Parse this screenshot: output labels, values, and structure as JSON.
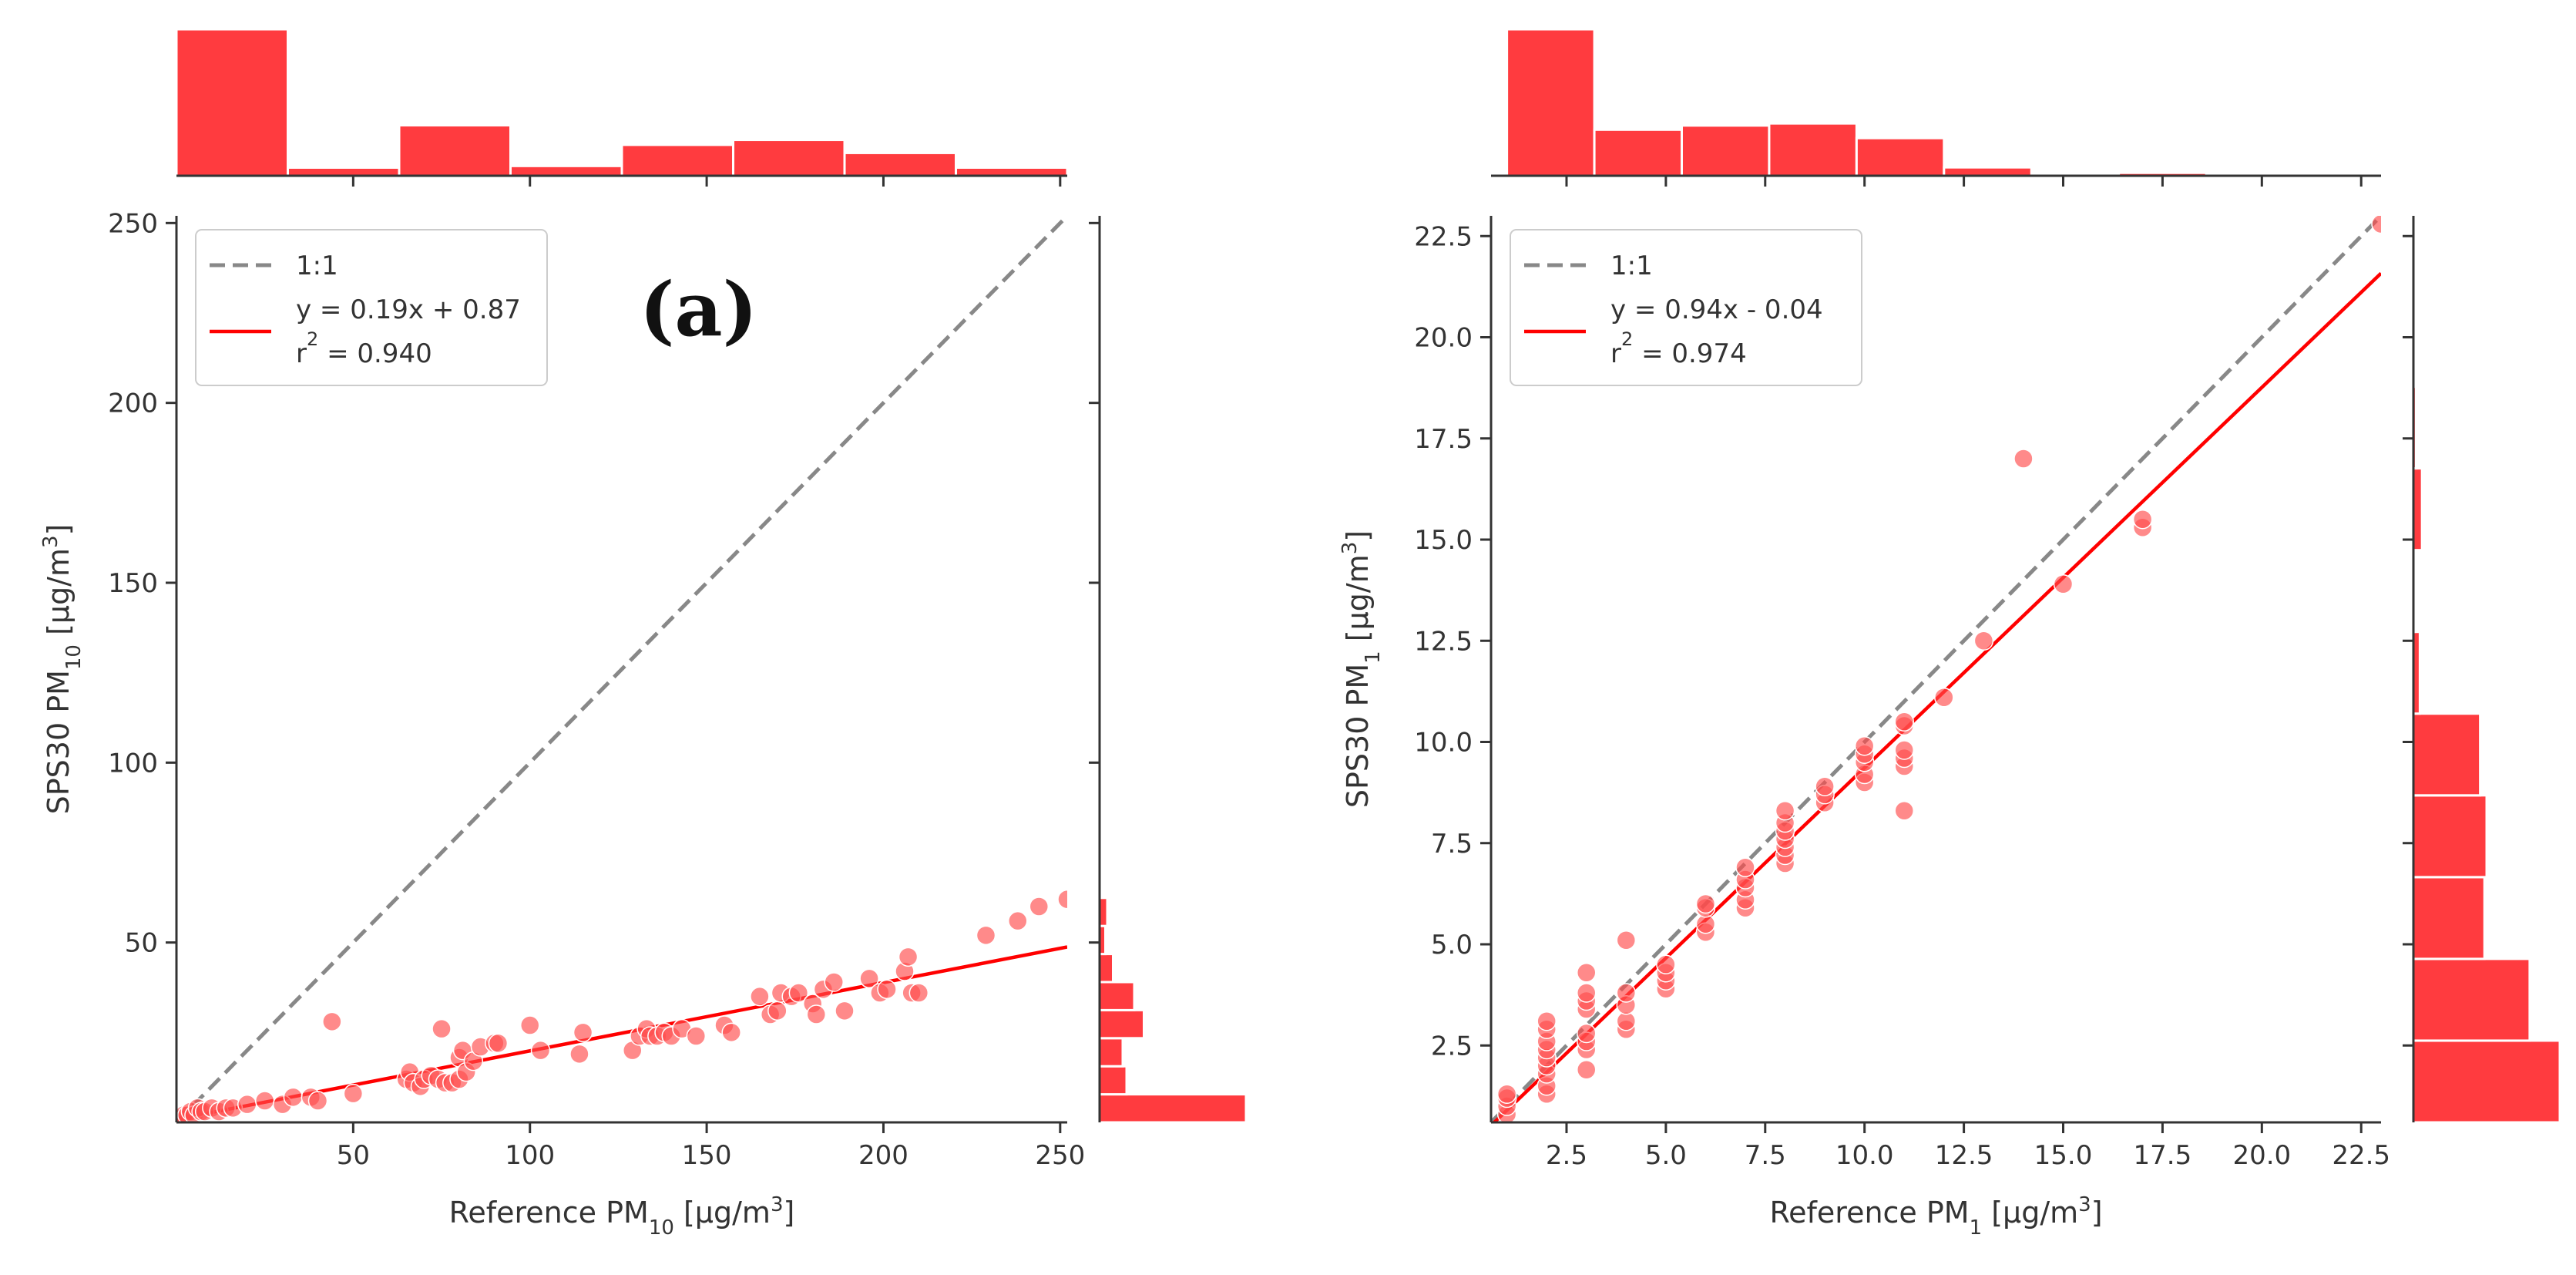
{
  "colors": {
    "points": "#ff4b4b",
    "fit_line": "#ff0000",
    "identity_line": "#888888",
    "histogram": "#ff3b3f",
    "axis": "#333333"
  },
  "chart_data": [
    {
      "type": "scatter",
      "panel_tag": "(a)",
      "xlabel": {
        "prefix": "Reference PM",
        "sub": "10",
        "suffix": " [µg/m",
        "sup": "3",
        "end": "]"
      },
      "ylabel": {
        "prefix": "SPS30 PM",
        "sub": "10",
        "suffix": " [µg/m",
        "sup": "3",
        "end": "]"
      },
      "xlim": [
        0,
        252
      ],
      "ylim": [
        0,
        252
      ],
      "xticks": [
        50,
        100,
        150,
        200,
        250
      ],
      "yticks": [
        50,
        100,
        150,
        200,
        250
      ],
      "tick_labels_x": [
        "50",
        "100",
        "150",
        "200",
        "250"
      ],
      "tick_labels_y": [
        "50",
        "100",
        "150",
        "200",
        "250"
      ],
      "legend": {
        "placement": "top-left",
        "identity_label": "1:1",
        "fit_label_line1": "y = 0.19x + 0.87",
        "fit_label_r": "r",
        "fit_label_sup": "2",
        "fit_label_rest": " = 0.940"
      },
      "fit": {
        "slope": 0.19,
        "intercept": 0.87
      },
      "points": [
        [
          1,
          1
        ],
        [
          2,
          2
        ],
        [
          3,
          2
        ],
        [
          4,
          3
        ],
        [
          5,
          2
        ],
        [
          6,
          4
        ],
        [
          7,
          3
        ],
        [
          8,
          3
        ],
        [
          10,
          4
        ],
        [
          12,
          3
        ],
        [
          14,
          4
        ],
        [
          16,
          4
        ],
        [
          20,
          5
        ],
        [
          25,
          6
        ],
        [
          30,
          5
        ],
        [
          33,
          7
        ],
        [
          38,
          7
        ],
        [
          40,
          6
        ],
        [
          44,
          28
        ],
        [
          50,
          8
        ],
        [
          65,
          12
        ],
        [
          66,
          14
        ],
        [
          67,
          11
        ],
        [
          69,
          10
        ],
        [
          70,
          12
        ],
        [
          72,
          13
        ],
        [
          74,
          12
        ],
        [
          75,
          26
        ],
        [
          76,
          11
        ],
        [
          78,
          11
        ],
        [
          80,
          18
        ],
        [
          80,
          12
        ],
        [
          81,
          20
        ],
        [
          82,
          14
        ],
        [
          84,
          17
        ],
        [
          86,
          21
        ],
        [
          90,
          22
        ],
        [
          91,
          22
        ],
        [
          100,
          27
        ],
        [
          103,
          20
        ],
        [
          114,
          19
        ],
        [
          115,
          25
        ],
        [
          129,
          20
        ],
        [
          131,
          24
        ],
        [
          133,
          26
        ],
        [
          134,
          24
        ],
        [
          136,
          24
        ],
        [
          138,
          25
        ],
        [
          140,
          24
        ],
        [
          143,
          26
        ],
        [
          147,
          24
        ],
        [
          155,
          27
        ],
        [
          157,
          25
        ],
        [
          165,
          35
        ],
        [
          168,
          30
        ],
        [
          170,
          31
        ],
        [
          171,
          36
        ],
        [
          174,
          35
        ],
        [
          176,
          36
        ],
        [
          180,
          33
        ],
        [
          181,
          30
        ],
        [
          183,
          37
        ],
        [
          186,
          39
        ],
        [
          189,
          31
        ],
        [
          196,
          40
        ],
        [
          199,
          36
        ],
        [
          201,
          37
        ],
        [
          206,
          42
        ],
        [
          207,
          46
        ],
        [
          208,
          36
        ],
        [
          210,
          36
        ],
        [
          229,
          52
        ],
        [
          238,
          56
        ],
        [
          244,
          60
        ],
        [
          252,
          62
        ]
      ],
      "hist_top": {
        "bin_edges": [
          0,
          31.5,
          63,
          94.5,
          126,
          157.5,
          189,
          220.5,
          252
        ],
        "counts": [
          90,
          5,
          31,
          6,
          19,
          22,
          14,
          5
        ]
      },
      "hist_right": {
        "bin_edges": [
          0,
          7.8,
          15.6,
          23.4,
          31.2,
          39,
          46.8,
          54.6,
          62.4
        ],
        "counts": [
          76,
          14,
          12,
          23,
          18,
          7,
          3,
          4
        ]
      }
    },
    {
      "type": "scatter",
      "panel_tag": "",
      "xlabel": {
        "prefix": "Reference PM",
        "sub": "1",
        "suffix": " [µg/m",
        "sup": "3",
        "end": "]"
      },
      "ylabel": {
        "prefix": "SPS30 PM",
        "sub": "1",
        "suffix": " [µg/m",
        "sup": "3",
        "end": "]"
      },
      "xlim": [
        0.6,
        23
      ],
      "ylim": [
        0.6,
        23
      ],
      "xticks": [
        2.5,
        5,
        7.5,
        10,
        12.5,
        15,
        17.5,
        20,
        22.5
      ],
      "yticks": [
        2.5,
        5,
        7.5,
        10,
        12.5,
        15,
        17.5,
        20,
        22.5
      ],
      "tick_labels_x": [
        "2.5",
        "5.0",
        "7.5",
        "10.0",
        "12.5",
        "15.0",
        "17.5",
        "20.0",
        "22.5"
      ],
      "tick_labels_y": [
        "2.5",
        "5.0",
        "7.5",
        "10.0",
        "12.5",
        "15.0",
        "17.5",
        "20.0",
        "22.5"
      ],
      "legend": {
        "placement": "top-left",
        "identity_label": "1:1",
        "fit_label_line1": "y = 0.94x - 0.04",
        "fit_label_r": "r",
        "fit_label_sup": "2",
        "fit_label_rest": " = 0.974"
      },
      "fit": {
        "slope": 0.94,
        "intercept": -0.04
      },
      "points": [
        [
          1,
          0.8
        ],
        [
          1,
          1.0
        ],
        [
          1,
          1.2
        ],
        [
          1,
          1.3
        ],
        [
          2,
          1.3
        ],
        [
          2,
          1.5
        ],
        [
          2,
          1.8
        ],
        [
          2,
          2.0
        ],
        [
          2,
          2.2
        ],
        [
          2,
          2.4
        ],
        [
          2,
          2.6
        ],
        [
          2,
          2.9
        ],
        [
          2,
          3.1
        ],
        [
          3,
          1.9
        ],
        [
          3,
          2.4
        ],
        [
          3,
          2.6
        ],
        [
          3,
          2.8
        ],
        [
          3,
          3.4
        ],
        [
          3,
          3.6
        ],
        [
          3,
          3.8
        ],
        [
          3,
          4.3
        ],
        [
          4,
          2.9
        ],
        [
          4,
          3.1
        ],
        [
          4,
          3.5
        ],
        [
          4,
          3.8
        ],
        [
          4,
          5.1
        ],
        [
          5,
          3.9
        ],
        [
          5,
          4.1
        ],
        [
          5,
          4.3
        ],
        [
          5,
          4.5
        ],
        [
          6,
          5.3
        ],
        [
          6,
          5.5
        ],
        [
          6,
          5.9
        ],
        [
          6,
          6.0
        ],
        [
          7,
          5.9
        ],
        [
          7,
          6.1
        ],
        [
          7,
          6.4
        ],
        [
          7,
          6.6
        ],
        [
          7,
          6.9
        ],
        [
          8,
          7.0
        ],
        [
          8,
          7.2
        ],
        [
          8,
          7.4
        ],
        [
          8,
          7.6
        ],
        [
          8,
          7.8
        ],
        [
          8,
          8.0
        ],
        [
          8,
          8.3
        ],
        [
          9,
          8.5
        ],
        [
          9,
          8.7
        ],
        [
          9,
          8.9
        ],
        [
          10,
          9.0
        ],
        [
          10,
          9.2
        ],
        [
          10,
          9.5
        ],
        [
          10,
          9.7
        ],
        [
          10,
          9.9
        ],
        [
          11,
          8.3
        ],
        [
          11,
          9.4
        ],
        [
          11,
          9.6
        ],
        [
          11,
          9.8
        ],
        [
          11,
          10.4
        ],
        [
          11,
          10.5
        ],
        [
          12,
          11.1
        ],
        [
          13,
          12.5
        ],
        [
          14,
          17.0
        ],
        [
          15,
          13.9
        ],
        [
          17,
          15.3
        ],
        [
          17,
          15.5
        ],
        [
          23,
          22.8
        ]
      ],
      "hist_top": {
        "bin_edges": [
          1,
          3.2,
          5.4,
          7.6,
          9.8,
          12,
          14.2,
          16.4,
          18.6,
          20.8,
          23
        ],
        "counts": [
          35,
          11,
          12,
          12.5,
          9,
          2,
          0,
          0.7,
          0,
          0
        ]
      },
      "hist_right": {
        "bin_edges": [
          0.6,
          2.62,
          4.64,
          6.66,
          8.68,
          10.7,
          12.72,
          14.74,
          16.76,
          18.78,
          20.8,
          22.82
        ],
        "counts": [
          34,
          27,
          16.5,
          17,
          15.5,
          1.5,
          0.3,
          2,
          0.6,
          0.3,
          0.3
        ]
      }
    }
  ]
}
